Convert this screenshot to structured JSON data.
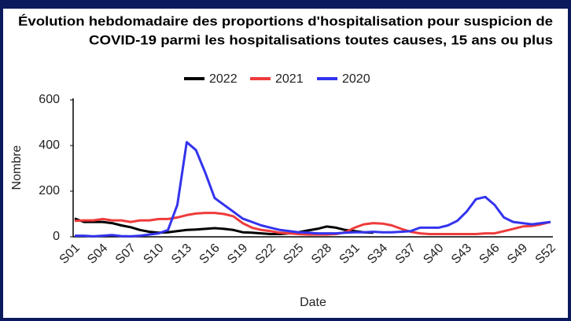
{
  "chart_data": {
    "type": "line",
    "title": [
      "Évolution hebdomadaire des proportions d'hospitalisation pour suspicion de",
      "COVID-19 parmi les hospitalisations toutes causes, 15 ans ou plus"
    ],
    "x_label": "Date",
    "y_label": "Nombre",
    "categories": [
      "S01",
      null,
      null,
      "S04",
      null,
      null,
      "S07",
      null,
      null,
      "S10",
      null,
      null,
      "S13",
      null,
      null,
      "S16",
      null,
      null,
      "S19",
      null,
      null,
      "S22",
      null,
      null,
      "S25",
      null,
      null,
      "S28",
      null,
      null,
      "S31",
      null,
      null,
      "S34",
      null,
      null,
      "S37",
      null,
      null,
      "S40",
      null,
      null,
      "S43",
      null,
      null,
      "S46",
      null,
      null,
      "S49",
      null,
      null,
      "S52"
    ],
    "ylim": [
      0,
      600
    ],
    "yticks": [
      0,
      200,
      400,
      600
    ],
    "grid": false,
    "legend": "top",
    "series": [
      {
        "name": "2022",
        "color": "#000000",
        "values": [
          80,
          65,
          65,
          65,
          60,
          50,
          42,
          30,
          22,
          18,
          20,
          25,
          30,
          32,
          35,
          38,
          35,
          30,
          20,
          18,
          15,
          12,
          12,
          15,
          20,
          28,
          35,
          45,
          40,
          30,
          25,
          20,
          18,
          null,
          null,
          null,
          null,
          null,
          null,
          null,
          null,
          null,
          null,
          null,
          null,
          null,
          null,
          null,
          null,
          null,
          null,
          null
        ]
      },
      {
        "name": "2021",
        "color": "#ee3b3b",
        "values": [
          70,
          72,
          72,
          78,
          72,
          72,
          65,
          72,
          72,
          78,
          78,
          85,
          95,
          102,
          105,
          105,
          100,
          90,
          60,
          40,
          30,
          25,
          18,
          15,
          12,
          10,
          10,
          10,
          12,
          20,
          40,
          55,
          60,
          58,
          50,
          35,
          22,
          15,
          12,
          12,
          12,
          12,
          12,
          12,
          15,
          15,
          25,
          35,
          45,
          48,
          55,
          65
        ]
      },
      {
        "name": "2020",
        "color": "#3333ee",
        "values": [
          5,
          5,
          2,
          5,
          8,
          3,
          2,
          5,
          10,
          15,
          30,
          140,
          415,
          380,
          280,
          170,
          140,
          110,
          80,
          65,
          50,
          40,
          30,
          25,
          20,
          18,
          15,
          15,
          15,
          18,
          20,
          20,
          22,
          20,
          20,
          22,
          25,
          40,
          40,
          40,
          50,
          70,
          110,
          165,
          175,
          140,
          85,
          65,
          60,
          55,
          60,
          65
        ]
      }
    ]
  }
}
